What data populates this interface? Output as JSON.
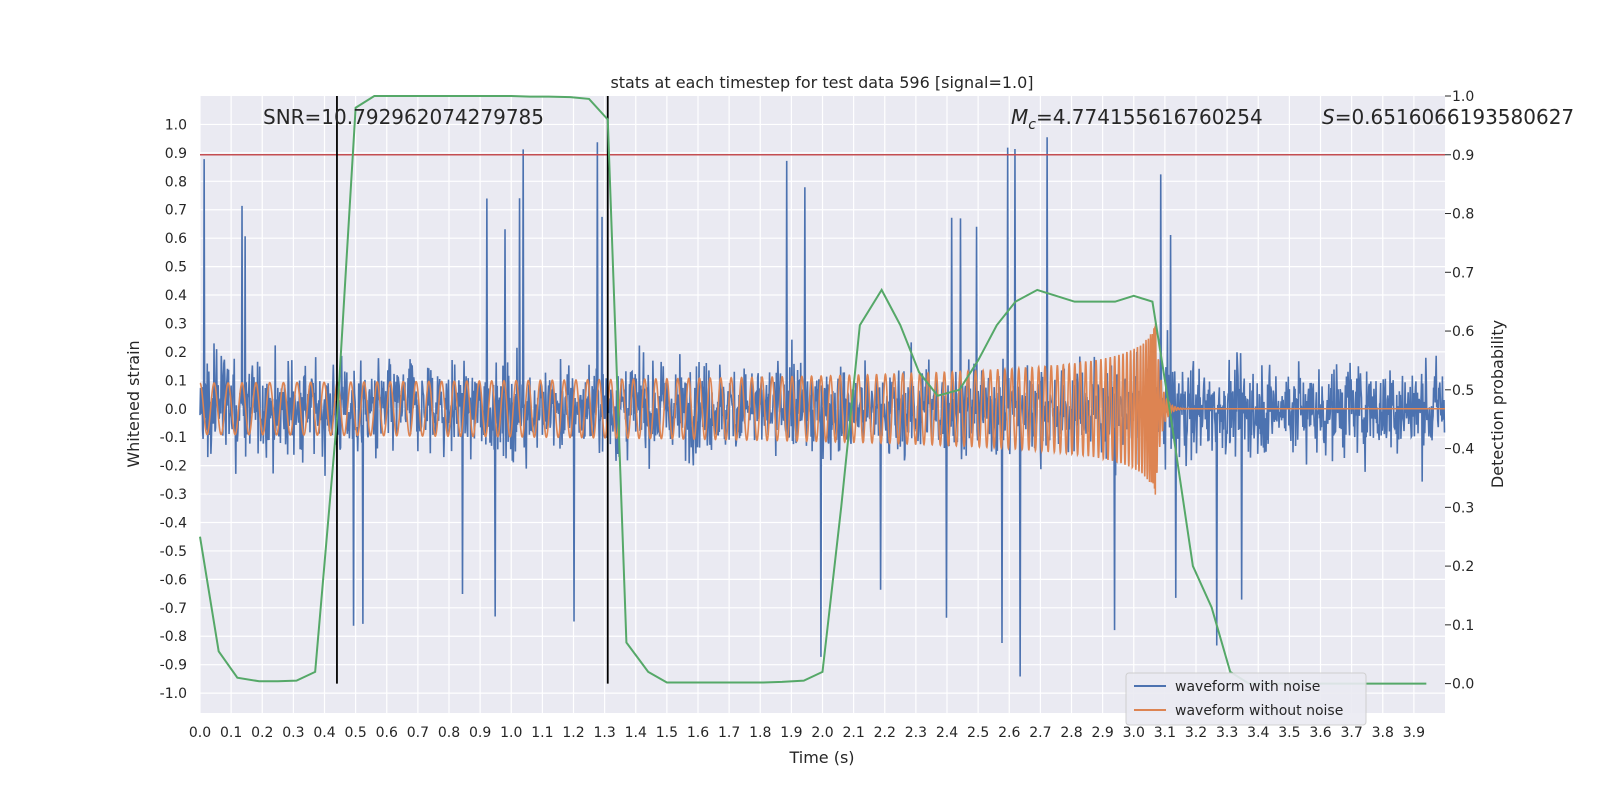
{
  "chart_data": {
    "type": "line",
    "title": "stats at each timestep for test data 596 [signal=1.0]",
    "xlabel": "Time (s)",
    "ylabel_left": "Whitened strain",
    "ylabel_right": "Detection probability",
    "xlim": [
      0,
      4
    ],
    "ylim_left": [
      -1.07,
      1.1
    ],
    "ylim_right": [
      -0.05,
      1.0
    ],
    "x_ticks": [
      "0.0",
      "0.1",
      "0.2",
      "0.3",
      "0.4",
      "0.5",
      "0.6",
      "0.7",
      "0.8",
      "0.9",
      "1.0",
      "1.1",
      "1.2",
      "1.3",
      "1.4",
      "1.5",
      "1.6",
      "1.7",
      "1.8",
      "1.9",
      "2.0",
      "2.1",
      "2.2",
      "2.3",
      "2.4",
      "2.5",
      "2.6",
      "2.7",
      "2.8",
      "2.9",
      "3.0",
      "3.1",
      "3.2",
      "3.3",
      "3.4",
      "3.5",
      "3.6",
      "3.7",
      "3.8",
      "3.9"
    ],
    "y_ticks_left": [
      "1.0",
      "0.9",
      "0.8",
      "0.7",
      "0.6",
      "0.5",
      "0.4",
      "0.3",
      "0.2",
      "0.1",
      "0.0",
      "-0.1",
      "-0.2",
      "-0.3",
      "-0.4",
      "-0.5",
      "-0.6",
      "-0.7",
      "-0.8",
      "-0.9",
      "-1.0"
    ],
    "y_ticks_right": [
      "1.0",
      "0.9",
      "0.8",
      "0.7",
      "0.6",
      "0.5",
      "0.4",
      "0.3",
      "0.2",
      "0.1",
      "0.0"
    ],
    "annotations": {
      "snr": "SNR=10.792962074279785",
      "mc_symbol": "M",
      "mc_sub": "c",
      "mc_value": "=4.774155616760254",
      "s_symbol": "S",
      "s_value": "=0.6516066193580627"
    },
    "threshold_right": 0.9,
    "vertical_lines_x": [
      0.44,
      1.31
    ],
    "series": [
      {
        "name": "waveform with noise",
        "color": "#4c72b0",
        "envelope": "noise, amplitude ~0.3 typical, spikes to ~1.0"
      },
      {
        "name": "waveform without noise",
        "color": "#dd8452",
        "envelope": "chirp, amplitude 0.04 at t=0 rising to 0.3 at merger t=3.07"
      },
      {
        "name": "",
        "color": "#55a868",
        "axis": "right",
        "x": [
          0.0,
          0.06,
          0.12,
          0.19,
          0.25,
          0.31,
          0.37,
          0.44,
          0.5,
          0.56,
          0.62,
          0.69,
          0.75,
          0.81,
          0.87,
          0.94,
          1.0,
          1.06,
          1.12,
          1.19,
          1.25,
          1.31,
          1.37,
          1.44,
          1.5,
          1.56,
          1.62,
          1.69,
          1.75,
          1.81,
          1.87,
          1.94,
          2.0,
          2.06,
          2.12,
          2.19,
          2.25,
          2.31,
          2.37,
          2.44,
          2.5,
          2.56,
          2.62,
          2.69,
          2.75,
          2.81,
          2.87,
          2.94,
          3.0,
          3.06,
          3.12,
          3.19,
          3.25,
          3.31,
          3.37,
          3.44,
          3.5,
          3.56,
          3.62,
          3.69,
          3.75,
          3.81,
          3.87,
          3.94
        ],
        "y": [
          0.25,
          0.055,
          0.01,
          0.004,
          0.004,
          0.005,
          0.02,
          0.45,
          0.98,
          1.0,
          1.0,
          1.0,
          1.0,
          1.0,
          1.0,
          1.0,
          1.0,
          0.999,
          0.999,
          0.998,
          0.995,
          0.96,
          0.07,
          0.02,
          0.002,
          0.002,
          0.002,
          0.002,
          0.002,
          0.002,
          0.003,
          0.005,
          0.02,
          0.3,
          0.61,
          0.67,
          0.61,
          0.53,
          0.49,
          0.5,
          0.55,
          0.61,
          0.65,
          0.67,
          0.66,
          0.65,
          0.65,
          0.65,
          0.66,
          0.65,
          0.45,
          0.2,
          0.13,
          0.02,
          0.0,
          0.0,
          0.0,
          0.0,
          0.0,
          0.0,
          0.0,
          0.0,
          0.0,
          0.0
        ]
      }
    ],
    "legend": {
      "placement": "lower-right",
      "entries": [
        "waveform with noise",
        "waveform without noise"
      ]
    },
    "grid": true,
    "colors": {
      "plot_bg": "#eaeaf2",
      "grid": "#ffffff",
      "threshold": "#c44e52",
      "vline": "#000000",
      "text": "#262626"
    }
  }
}
